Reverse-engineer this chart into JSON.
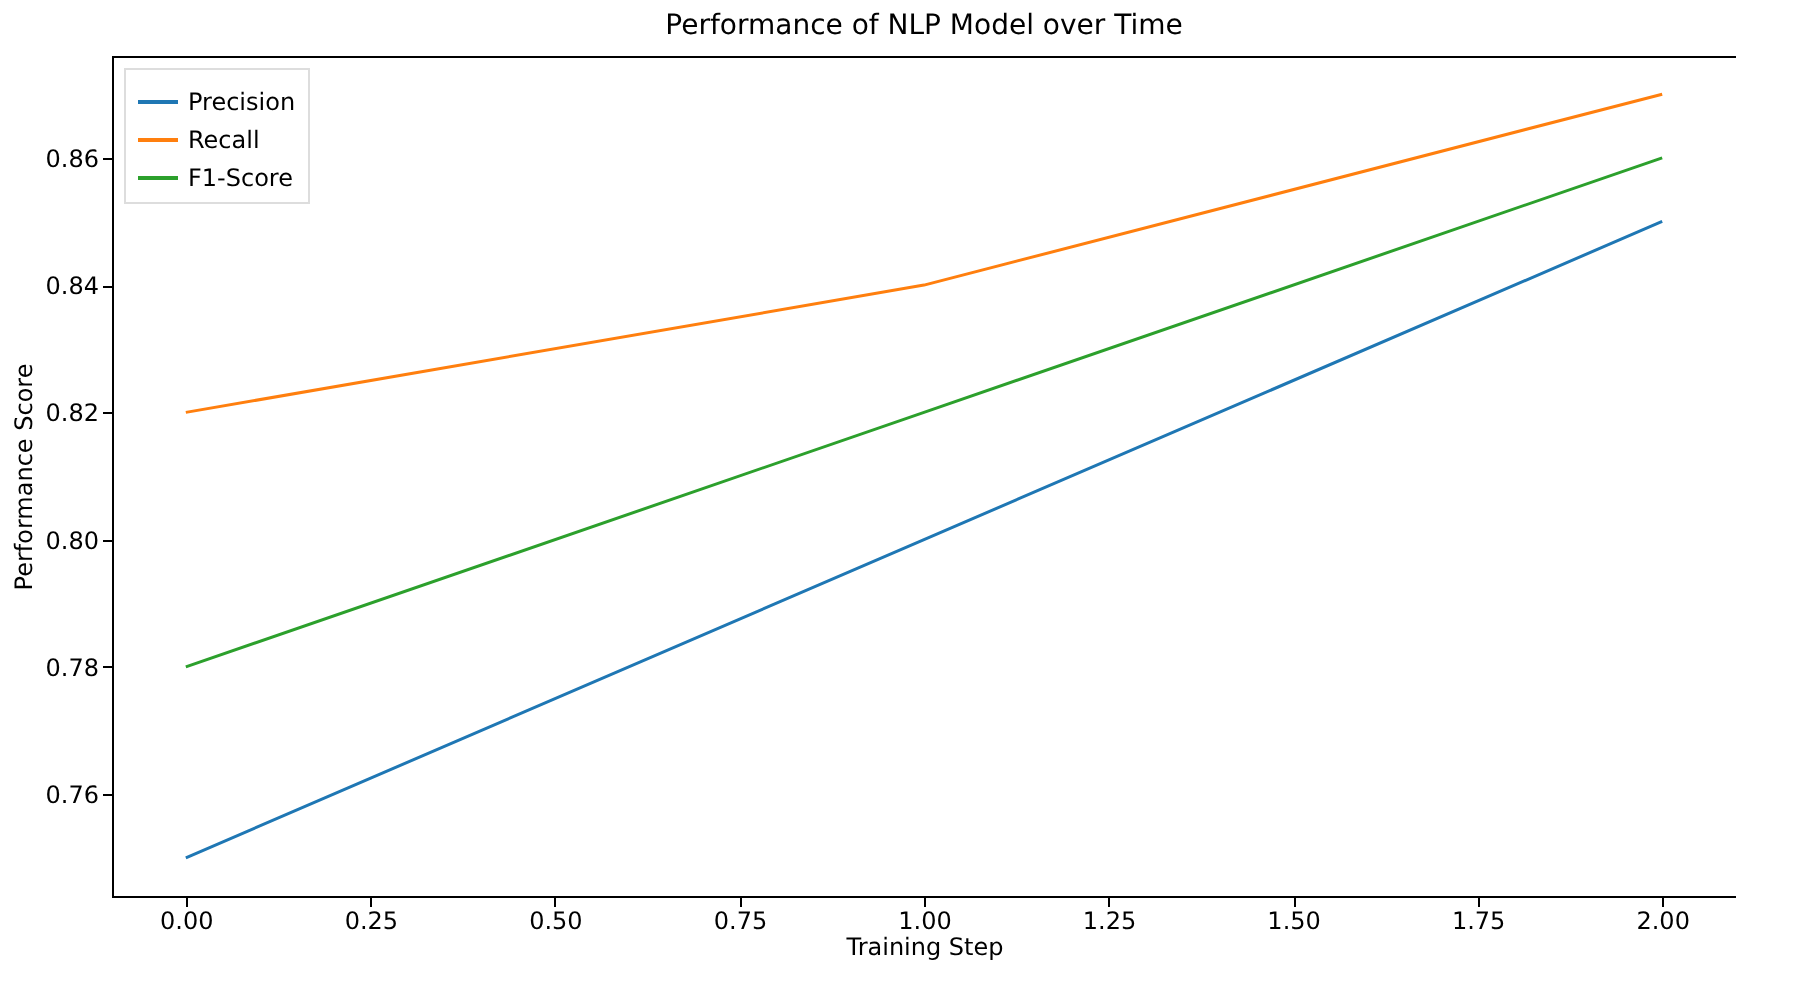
{
  "chart_data": {
    "type": "line",
    "title": "Performance of NLP Model over Time",
    "xlabel": "Training Step",
    "ylabel": "Performance Score",
    "x": [
      0,
      1,
      2
    ],
    "series": [
      {
        "name": "Precision",
        "color": "#1f77b4",
        "values": [
          0.75,
          0.8,
          0.85
        ]
      },
      {
        "name": "Recall",
        "color": "#ff7f0e",
        "values": [
          0.82,
          0.84,
          0.87
        ]
      },
      {
        "name": "F1-Score",
        "color": "#2ca02c",
        "values": [
          0.78,
          0.82,
          0.86
        ]
      }
    ],
    "xlim": [
      -0.1,
      2.1
    ],
    "xticks": [
      {
        "value": 0,
        "label": "0.00"
      },
      {
        "value": 0.25,
        "label": "0.25"
      },
      {
        "value": 0.5,
        "label": "0.50"
      },
      {
        "value": 0.75,
        "label": "0.75"
      },
      {
        "value": 1,
        "label": "1.00"
      },
      {
        "value": 1.25,
        "label": "1.25"
      },
      {
        "value": 1.5,
        "label": "1.50"
      },
      {
        "value": 1.75,
        "label": "1.75"
      },
      {
        "value": 2,
        "label": "2.00"
      }
    ],
    "ylim": [
      0.744,
      0.876
    ],
    "yticks": [
      {
        "value": 0.76,
        "label": "0.76"
      },
      {
        "value": 0.78,
        "label": "0.78"
      },
      {
        "value": 0.8,
        "label": "0.80"
      },
      {
        "value": 0.82,
        "label": "0.82"
      },
      {
        "value": 0.84,
        "label": "0.84"
      },
      {
        "value": 0.86,
        "label": "0.86"
      }
    ],
    "grid": false,
    "legend": "top left",
    "marker": "none",
    "line_style": "solid"
  }
}
